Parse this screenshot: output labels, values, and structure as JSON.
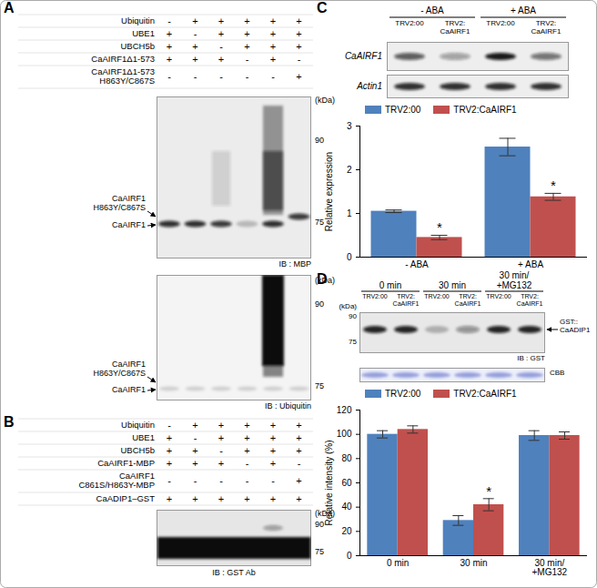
{
  "figure": {
    "panel_A": {
      "label": "A",
      "rows": [
        {
          "name": "Ubiquitin",
          "marks": [
            "-",
            "+",
            "+",
            "+",
            "+",
            "+"
          ]
        },
        {
          "name": "UBE1",
          "marks": [
            "+",
            "-",
            "+",
            "+",
            "+",
            "+"
          ]
        },
        {
          "name": "UBCH5b",
          "marks": [
            "+",
            "+",
            "-",
            "+",
            "+",
            "+"
          ]
        },
        {
          "name": "CaAIRF1Δ1-573",
          "marks": [
            "+",
            "+",
            "+",
            "-",
            "+",
            "-"
          ]
        },
        {
          "name": "CaAIRF1Δ1-573\nH863Y/C867S",
          "marks": [
            "-",
            "-",
            "-",
            "-",
            "-",
            "+"
          ]
        }
      ],
      "blots": [
        {
          "bands": [
            "CaAIRF1\nH863Y/C867S",
            "CaAIRF1"
          ],
          "unit": "(kDa)",
          "markers": [
            90,
            75
          ],
          "antibody": "IB : MBP"
        },
        {
          "bands": [
            "CaAIRF1\nH863Y/C867S",
            "CaAIRF1"
          ],
          "unit": "(kDa)",
          "markers": [
            90,
            75
          ],
          "antibody": "IB : Ubiquitin"
        }
      ]
    },
    "panel_B": {
      "label": "B",
      "rows": [
        {
          "name": "Ubiquitin",
          "marks": [
            "-",
            "+",
            "+",
            "+",
            "+",
            "+"
          ]
        },
        {
          "name": "UBE1",
          "marks": [
            "+",
            "-",
            "+",
            "+",
            "+",
            "+"
          ]
        },
        {
          "name": "UBCH5b",
          "marks": [
            "+",
            "+",
            "-",
            "+",
            "+",
            "+"
          ]
        },
        {
          "name": "CaAIRF1-MBP",
          "marks": [
            "+",
            "+",
            "+",
            "-",
            "+",
            "-"
          ]
        },
        {
          "name": "CaAIRF1\nC861S/H863Y-MBP",
          "marks": [
            "-",
            "-",
            "-",
            "-",
            "-",
            "+"
          ]
        },
        {
          "name": "CaADIP1–GST",
          "marks": [
            "+",
            "+",
            "+",
            "+",
            "+",
            "+"
          ]
        }
      ],
      "blot": {
        "unit": "(kDa)",
        "markers": [
          90,
          75
        ],
        "antibody": "IB : GST Ab"
      }
    },
    "panel_C": {
      "label": "C",
      "groups": [
        "- ABA",
        "+ ABA"
      ],
      "lanes": [
        "TRV2:00",
        "TRV2:CaAIRF1",
        "TRV2:00",
        "TRV2:CaAIRF1"
      ],
      "rows": [
        "CaAIRF1",
        "Actin1"
      ]
    },
    "panel_D": {
      "label": "D",
      "groups": [
        "0 min",
        "30 min",
        "30 min/\n+MG132"
      ],
      "lanes": [
        "TRV2:00",
        "TRV2:CaAIRF1",
        "TRV2:00",
        "TRV2:CaAIRF1",
        "TRV2:00",
        "TRV2:CaAIRF1"
      ],
      "unit": "(kDa)",
      "markers": [
        90,
        75
      ],
      "band": "GST::\nCaADIP1",
      "antibody": "IB : GST",
      "stain": "CBB"
    }
  },
  "chart_data": [
    {
      "type": "bar",
      "panel": "C",
      "categories": [
        "- ABA",
        "+ ABA"
      ],
      "series": [
        {
          "name": "TRV2:00",
          "color": "#4f81bd",
          "values": [
            1.05,
            2.52
          ],
          "errors": [
            0.03,
            0.2
          ]
        },
        {
          "name": "TRV2:CaAIRF1",
          "color": "#c0504d",
          "values": [
            0.45,
            1.38
          ],
          "errors": [
            0.05,
            0.08
          ]
        }
      ],
      "y_label": "Relative expression",
      "ylim": [
        0,
        3
      ],
      "yticks": [
        0,
        1,
        2,
        3
      ],
      "legend": "top",
      "annotations": [
        {
          "category": "- ABA",
          "series": "TRV2:CaAIRF1",
          "text": "*"
        },
        {
          "category": "+ ABA",
          "series": "TRV2:CaAIRF1",
          "text": "*"
        }
      ]
    },
    {
      "type": "bar",
      "panel": "D",
      "categories": [
        "0 min",
        "30 min",
        "30 min/\n+MG132"
      ],
      "series": [
        {
          "name": "TRV2:00",
          "color": "#4f81bd",
          "values": [
            100,
            29,
            99
          ],
          "errors": [
            3,
            4,
            4
          ]
        },
        {
          "name": "TRV2:CaAIRF1",
          "color": "#c0504d",
          "values": [
            104,
            42,
            99
          ],
          "errors": [
            3,
            5,
            3
          ]
        }
      ],
      "y_label": "Relative intensity (%)",
      "ylim": [
        0,
        120
      ],
      "yticks": [
        0,
        20,
        40,
        60,
        80,
        100,
        120
      ],
      "legend": "top",
      "annotations": [
        {
          "category": "30 min",
          "series": "TRV2:CaAIRF1",
          "text": "*"
        }
      ]
    }
  ]
}
